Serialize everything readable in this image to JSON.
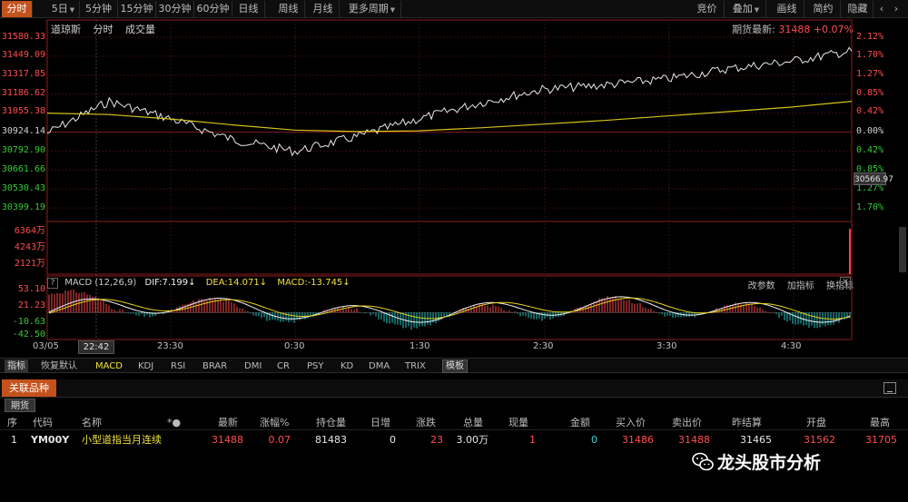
{
  "toolbar": {
    "left": [
      {
        "label": "分时",
        "active": true
      },
      {
        "label": "5日",
        "dropdown": true
      },
      {
        "label": "5分钟"
      },
      {
        "label": "15分钟"
      },
      {
        "label": "30分钟"
      },
      {
        "label": "60分钟"
      },
      {
        "label": "日线"
      },
      {
        "label": "周线"
      },
      {
        "label": "月线"
      },
      {
        "label": "更多周期",
        "dropdown": true
      }
    ],
    "right": [
      {
        "label": "竞价"
      },
      {
        "label": "叠加",
        "dropdown": true
      },
      {
        "label": "画线"
      },
      {
        "label": "简约"
      },
      {
        "label": "隐藏"
      }
    ]
  },
  "chart_header": {
    "name": "道琼斯",
    "mode": "分时",
    "volume_label": "成交量",
    "latest_label": "期货最新:",
    "latest_price": "31488",
    "latest_change": "+0.07%"
  },
  "price_axis": [
    "31580.33",
    "31449.09",
    "31317.85",
    "31186.62",
    "31055.38",
    "30924.14",
    "30792.90",
    "30661.66",
    "30530.43",
    "30399.19"
  ],
  "pct_axis": [
    "2.12%",
    "1.70%",
    "1.27%",
    "0.85%",
    "0.42%",
    "0.00%",
    "0.42%",
    "0.85%",
    "1.27%",
    "1.70%"
  ],
  "cursor_price": "30566.97",
  "volume_axis": [
    "6364万",
    "4243万",
    "2121万"
  ],
  "macd_header": {
    "name": "MACD (12,26,9)",
    "dif": "DIF:7.199",
    "dea": "DEA:14.071",
    "macd": "MACD:-13.745",
    "actions": [
      "改参数",
      "加指标",
      "换指标"
    ]
  },
  "macd_axis": [
    "53.10",
    "21.23",
    "-10.63",
    "-42.50"
  ],
  "time_axis": {
    "date": "03/05",
    "cursor_time": "22:42",
    "ticks": [
      "23:30",
      "0:30",
      "1:30",
      "2:30",
      "3:30",
      "4:30"
    ]
  },
  "indicator_tabs": [
    "指标",
    "恢复默认",
    "MACD",
    "KDJ",
    "RSI",
    "BRAR",
    "DMI",
    "CR",
    "PSY",
    "KD",
    "DMA",
    "TRIX",
    "模板"
  ],
  "related": {
    "tab": "关联品种",
    "subtab": "期货",
    "columns": [
      "序",
      "代码",
      "名称",
      "最新",
      "涨幅%",
      "持仓量",
      "日增",
      "涨跌",
      "总量",
      "现量",
      "金额",
      "买入价",
      "卖出价",
      "昨结算",
      "开盘",
      "最高"
    ],
    "rows": [
      {
        "seq": "1",
        "code": "YM00Y",
        "name": "小型道指当月连续",
        "last": "31488",
        "chg_pct": "0.07",
        "oi": "81483",
        "daily_inc": "0",
        "change": "23",
        "volume": "3.00万",
        "cur_vol": "1",
        "amount": "0",
        "bid": "31486",
        "ask": "31488",
        "prev_settle": "31465",
        "open": "31562",
        "high": "31705"
      }
    ]
  },
  "watermark": "龙头股市分析",
  "chart_data": {
    "type": "line",
    "description_series": [
      "price",
      "average"
    ],
    "x": [
      "22:30",
      "23:00",
      "23:30",
      "0:00",
      "0:30",
      "1:00",
      "1:30",
      "2:00",
      "2:30",
      "3:00",
      "3:30",
      "4:00",
      "4:30",
      "5:00"
    ],
    "series": [
      {
        "name": "price",
        "values": [
          30924,
          31140,
          31020,
          30880,
          30800,
          30900,
          31020,
          31130,
          31220,
          31250,
          31290,
          31360,
          31410,
          31480
        ]
      },
      {
        "name": "average",
        "values": [
          31060,
          31050,
          31020,
          30980,
          30945,
          30935,
          30940,
          30960,
          30985,
          31010,
          31040,
          31070,
          31100,
          31140
        ]
      }
    ],
    "ylim": [
      30399.19,
      31580.33
    ],
    "macd": {
      "dif": 7.199,
      "dea": 14.071,
      "macd": -13.745,
      "ylim": [
        -42.5,
        53.1
      ]
    }
  }
}
